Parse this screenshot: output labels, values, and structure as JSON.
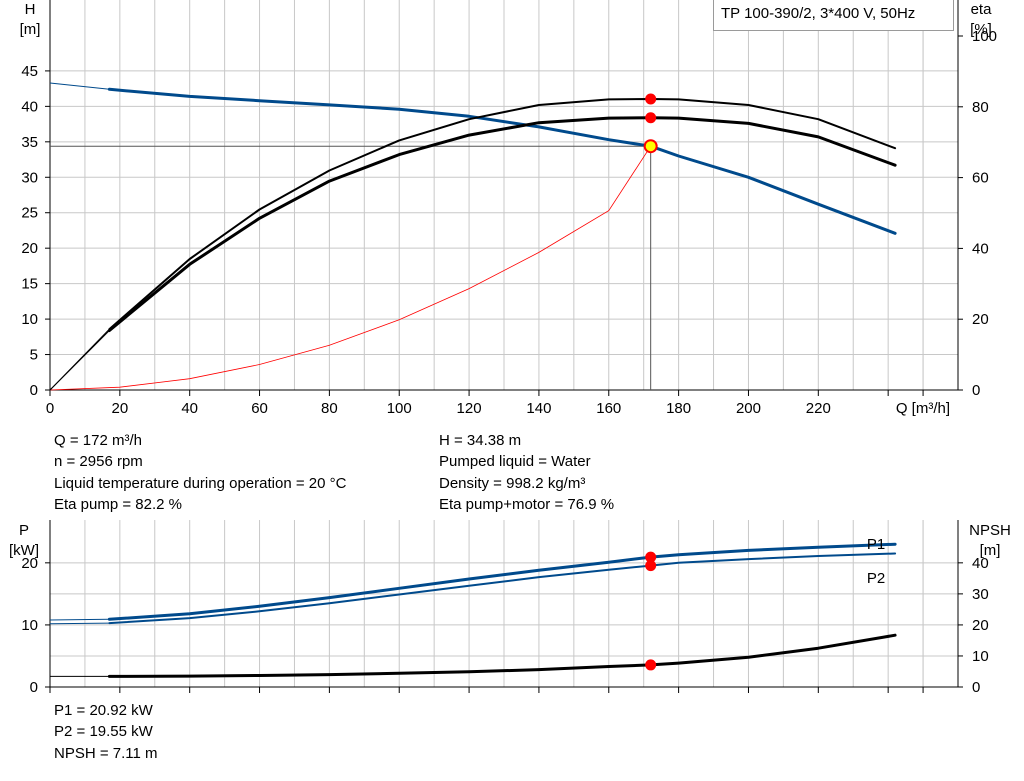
{
  "pump_title": "TP 100-390/2, 3*400 V, 50Hz",
  "colors": {
    "head": "#004A8C",
    "power": "#004A8C",
    "eta": "#000000",
    "npsh": "#000000",
    "system": "#FF0000",
    "grid": "#C8C8C8",
    "marker": "#FF0000",
    "duty_fill": "#FFFF00"
  },
  "top_chart": {
    "left_axis_label": [
      "H",
      "[m]"
    ],
    "right_axis_label": [
      "eta",
      "[%]"
    ],
    "x_axis_label": "Q [m³/h]",
    "x_ticks": [
      "0",
      "20",
      "40",
      "60",
      "80",
      "100",
      "120",
      "140",
      "160",
      "180",
      "200",
      "220"
    ],
    "y_ticks": [
      "0",
      "5",
      "10",
      "15",
      "20",
      "25",
      "30",
      "35",
      "40",
      "45"
    ],
    "eta_ticks": [
      "0",
      "20",
      "40",
      "60",
      "80",
      "100"
    ]
  },
  "duty_info": {
    "q": "Q = 172 m³/h",
    "n": "n = 2956 rpm",
    "temp": "Liquid temperature during operation = 20 °C",
    "eta_pump": "Eta pump = 82.2 %",
    "h": "H = 34.38 m",
    "liquid": "Pumped liquid = Water",
    "density": "Density = 998.2 kg/m³",
    "eta_total": "Eta pump+motor = 76.9 %"
  },
  "bottom_chart": {
    "left_axis_label": [
      "P",
      "[kW]"
    ],
    "right_axis_label": [
      "NPSH",
      "[m]"
    ],
    "p_ticks": [
      "0",
      "10",
      "20"
    ],
    "npsh_ticks": [
      "0",
      "10",
      "20",
      "30",
      "40"
    ],
    "p1_label": "P1",
    "p2_label": "P2"
  },
  "power_info": {
    "p1": "P1 = 20.92 kW",
    "p2": "P2 = 19.55 kW",
    "npsh": "NPSH = 7.11 m"
  },
  "chart_data": {
    "type": "line",
    "title": "TP 100-390/2, 3*400 V, 50Hz",
    "duty_point": {
      "q": 172,
      "h": 34.38,
      "eta_pump": 82.2,
      "eta_total": 76.9,
      "p1": 20.92,
      "p2": 19.55,
      "npsh": 7.11
    },
    "series": [
      {
        "name": "H",
        "axis": "H [m]",
        "x": [
          0,
          17,
          40,
          60,
          80,
          100,
          120,
          140,
          160,
          172,
          180,
          200,
          220,
          242
        ],
        "y": [
          43.3,
          42.4,
          41.4,
          40.8,
          40.2,
          39.6,
          38.6,
          37.1,
          35.3,
          34.38,
          33.0,
          30.0,
          26.2,
          22.1
        ],
        "extrapolated_below": 17
      },
      {
        "name": "System curve",
        "axis": "H [m]",
        "x": [
          0,
          20,
          40,
          60,
          80,
          100,
          120,
          140,
          160,
          172
        ],
        "y": [
          0,
          0.4,
          1.6,
          3.6,
          6.3,
          9.9,
          14.3,
          19.4,
          25.3,
          34.38
        ]
      },
      {
        "name": "Eta pump",
        "axis": "eta [%]",
        "x": [
          0,
          17,
          40,
          60,
          80,
          100,
          120,
          140,
          160,
          172,
          180,
          200,
          220,
          242
        ],
        "y": [
          0,
          17.2,
          37,
          51,
          62,
          70.5,
          76.5,
          80.5,
          82.1,
          82.2,
          82.1,
          80.5,
          76.5,
          68.3
        ]
      },
      {
        "name": "Eta pump+motor",
        "axis": "eta [%]",
        "x": [
          0,
          17,
          40,
          60,
          80,
          100,
          120,
          140,
          160,
          172,
          180,
          200,
          220,
          242
        ],
        "y": [
          0,
          16.8,
          35.5,
          48.5,
          59,
          66.5,
          72,
          75.5,
          76.8,
          76.9,
          76.8,
          75.3,
          71.5,
          63.5
        ]
      },
      {
        "name": "P1",
        "axis": "P [kW]",
        "x": [
          0,
          17,
          40,
          60,
          80,
          100,
          120,
          140,
          160,
          172,
          180,
          200,
          220,
          242
        ],
        "y": [
          10.8,
          10.9,
          11.8,
          13.0,
          14.4,
          15.9,
          17.4,
          18.8,
          20.1,
          20.92,
          21.3,
          22.0,
          22.5,
          23.0
        ]
      },
      {
        "name": "P2",
        "axis": "P [kW]",
        "x": [
          0,
          17,
          40,
          60,
          80,
          100,
          120,
          140,
          160,
          172,
          180,
          200,
          220,
          242
        ],
        "y": [
          10.2,
          10.3,
          11.1,
          12.2,
          13.5,
          14.9,
          16.3,
          17.7,
          18.9,
          19.55,
          20.0,
          20.6,
          21.1,
          21.5
        ]
      },
      {
        "name": "NPSH",
        "axis": "NPSH [m]",
        "x": [
          0,
          17,
          40,
          60,
          80,
          100,
          120,
          140,
          160,
          172,
          180,
          200,
          220,
          242
        ],
        "y": [
          3.4,
          3.4,
          3.5,
          3.7,
          4.0,
          4.4,
          4.9,
          5.6,
          6.6,
          7.11,
          7.7,
          9.6,
          12.5,
          16.7
        ]
      }
    ],
    "x_axis": {
      "label": "Q [m³/h]",
      "range": [
        0,
        260
      ]
    },
    "top_left_axis": {
      "label": "H [m]",
      "range": [
        0,
        55
      ]
    },
    "top_right_axis": {
      "label": "eta [%]",
      "range": [
        0,
        100
      ]
    },
    "bottom_left_axis": {
      "label": "P [kW]",
      "range": [
        0,
        26.9
      ]
    },
    "bottom_right_axis": {
      "label": "NPSH [m]",
      "range": [
        0,
        53.8
      ]
    },
    "grid": true
  }
}
